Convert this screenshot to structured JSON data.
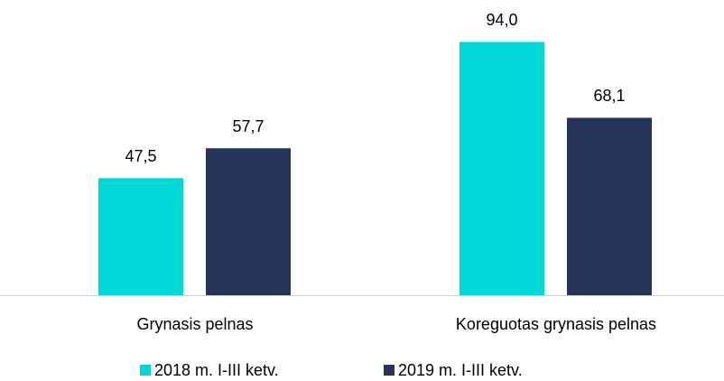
{
  "chart_data": {
    "type": "bar",
    "categories": [
      "Grynasis pelnas",
      "Koreguotas grynasis pelnas"
    ],
    "series": [
      {
        "name": "2018 m. I-III ketv.",
        "color": "#00d8d8",
        "values": [
          47.5,
          94.0
        ],
        "value_labels": [
          "47,5",
          "94,0"
        ]
      },
      {
        "name": "2019 m. I-III ketv.",
        "color": "#263459",
        "values": [
          57.7,
          68.1
        ],
        "value_labels": [
          "57,7",
          "68,1"
        ]
      }
    ],
    "ylim": [
      7.5,
      100
    ],
    "legend": "bottom"
  }
}
